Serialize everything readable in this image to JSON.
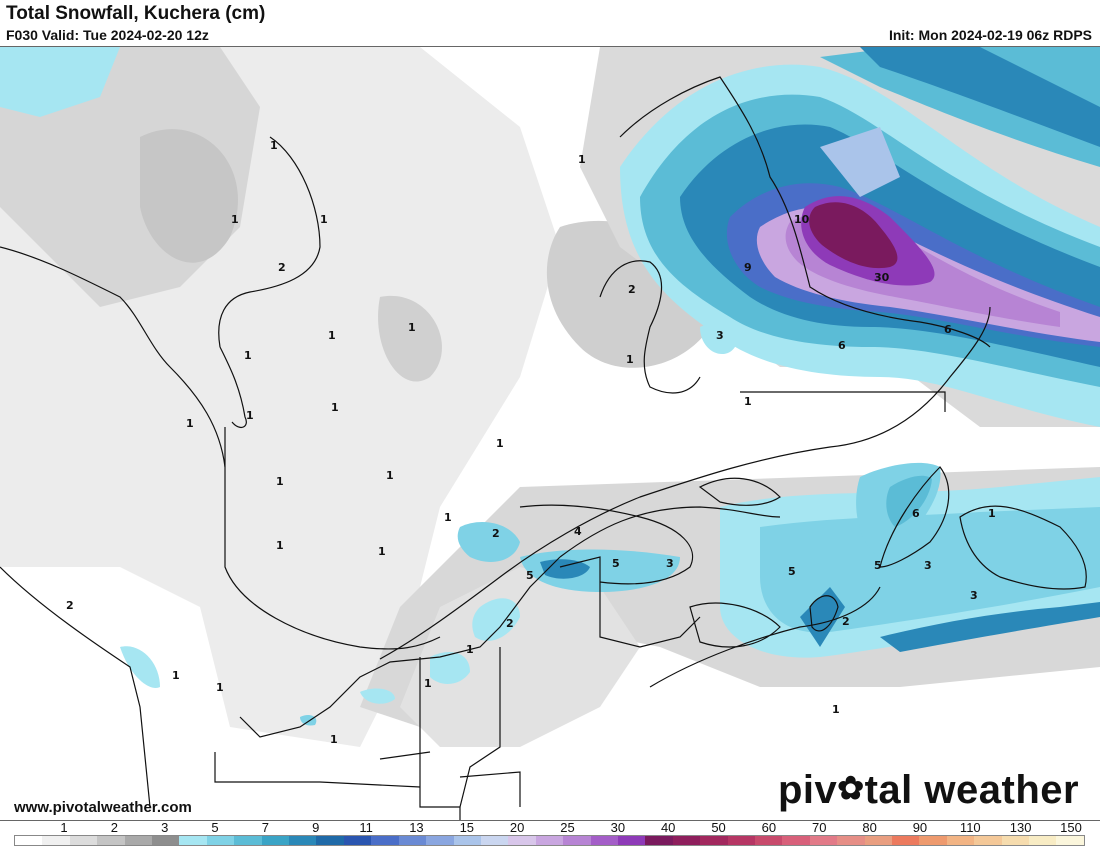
{
  "header": {
    "title": "Total Snowfall, Kuchera (cm)",
    "valid": "F030 Valid: Tue 2024-02-20 12z",
    "init": "Init: Mon 2024-02-19 06z RDPS"
  },
  "footer": {
    "site": "www.pivotalweather.com",
    "brand_before": "piv",
    "brand_after": "tal weather"
  },
  "legend": {
    "tick_labels": [
      "1",
      "2",
      "3",
      "5",
      "7",
      "9",
      "11",
      "13",
      "15",
      "20",
      "25",
      "30",
      "40",
      "50",
      "60",
      "70",
      "80",
      "90",
      "110",
      "130",
      "150"
    ],
    "colors": [
      "#ffffff",
      "#f0f0f0",
      "#dcdcdc",
      "#c4c4c4",
      "#a9a9a9",
      "#8e8e8e",
      "#a6e6f2",
      "#7fd2e6",
      "#5bbcd6",
      "#3aa4c6",
      "#2a88b8",
      "#1f6aa8",
      "#2a55b0",
      "#4a6ec8",
      "#6a8ad4",
      "#8aa6e0",
      "#aac4ea",
      "#cad6f0",
      "#d8c6ea",
      "#c9a6e0",
      "#b784d4",
      "#a45ec8",
      "#8e3ab8",
      "#7a1a5e",
      "#8e1e5c",
      "#a2285e",
      "#b63664",
      "#c84a6c",
      "#d8607a",
      "#e27a88",
      "#e68e86",
      "#e99e80",
      "#ec7a5e",
      "#ee9a6e",
      "#f2b484",
      "#f4c898",
      "#f6dcae",
      "#f8ecc4",
      "#fbf6dc"
    ]
  },
  "map": {
    "labels": [
      {
        "t": "1"
      },
      {
        "t": "1"
      },
      {
        "t": "2"
      },
      {
        "t": "1"
      },
      {
        "t": "1"
      },
      {
        "t": "1"
      },
      {
        "t": "1"
      },
      {
        "t": "1"
      },
      {
        "t": "1"
      },
      {
        "t": "1"
      },
      {
        "t": "1"
      },
      {
        "t": "1"
      },
      {
        "t": "1"
      },
      {
        "t": "1"
      },
      {
        "t": "1"
      },
      {
        "t": "2"
      },
      {
        "t": "1"
      },
      {
        "t": "1"
      },
      {
        "t": "1"
      },
      {
        "t": "1"
      },
      {
        "t": "1"
      },
      {
        "t": "5"
      },
      {
        "t": "2"
      },
      {
        "t": "4"
      },
      {
        "t": "3"
      },
      {
        "t": "2"
      },
      {
        "t": "1"
      },
      {
        "t": "5"
      },
      {
        "t": "9"
      },
      {
        "t": "10"
      },
      {
        "t": "30"
      },
      {
        "t": "6"
      },
      {
        "t": "6"
      },
      {
        "t": "3"
      },
      {
        "t": "2"
      },
      {
        "t": "1"
      },
      {
        "t": "1"
      },
      {
        "t": "6"
      },
      {
        "t": "5"
      },
      {
        "t": "3"
      },
      {
        "t": "3"
      },
      {
        "t": "1"
      },
      {
        "t": "2"
      },
      {
        "t": "1"
      },
      {
        "t": "5"
      },
      {
        "t": "1"
      }
    ]
  }
}
